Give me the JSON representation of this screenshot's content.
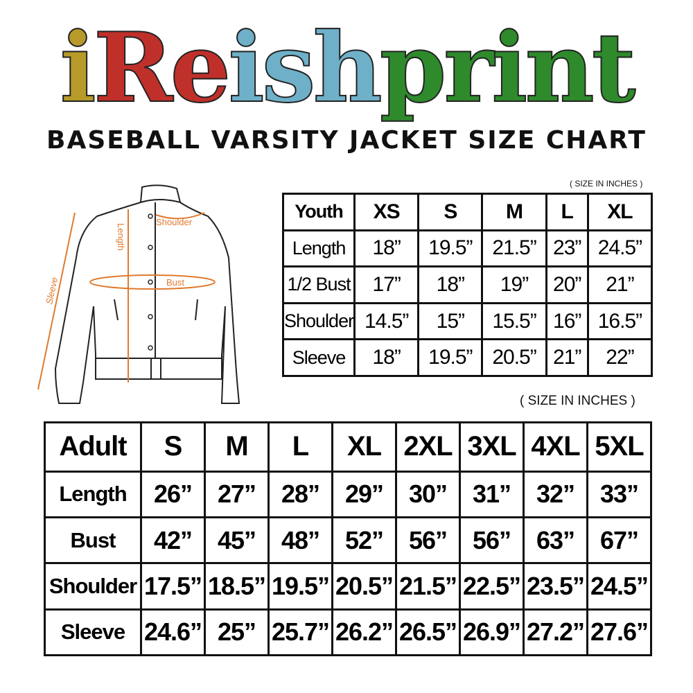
{
  "logo": {
    "text": "iReishprint",
    "letters": [
      "i",
      "R",
      "e",
      "i",
      "s",
      "h",
      "p",
      "r",
      "i",
      "n",
      "t"
    ],
    "colors": [
      "#b79a2a",
      "#c0302a",
      "#c0302a",
      "#6fb0c9",
      "#6fb0c9",
      "#6fb0c9",
      "#2f8a2c",
      "#2f8a2c",
      "#2f8a2c",
      "#2f8a2c",
      "#2f8a2c"
    ]
  },
  "title": "BASEBALL VARSITY JACKET SIZE CHART",
  "diagram": {
    "labels": {
      "shoulder": "Shoulder",
      "length": "Length",
      "bust": "Bust",
      "sleeve": "Sleeve"
    },
    "accent": "#e07a2e"
  },
  "youth": {
    "unit_note": "( SIZE IN INCHES )",
    "header": [
      "Youth",
      "XS",
      "S",
      "M",
      "L",
      "XL"
    ],
    "rows": [
      [
        "Length",
        "18”",
        "19.5”",
        "21.5”",
        "23”",
        "24.5”"
      ],
      [
        "1/2 Bust",
        "17”",
        "18”",
        "19”",
        "20”",
        "21”"
      ],
      [
        "Shoulder",
        "14.5”",
        "15”",
        "15.5”",
        "16”",
        "16.5”"
      ],
      [
        "Sleeve",
        "18”",
        "19.5”",
        "20.5”",
        "21”",
        "22”"
      ]
    ]
  },
  "adult": {
    "unit_note": "( SIZE IN INCHES )",
    "header": [
      "Adult",
      "S",
      "M",
      "L",
      "XL",
      "2XL",
      "3XL",
      "4XL",
      "5XL"
    ],
    "rows": [
      [
        "Length",
        "26”",
        "27”",
        "28”",
        "29”",
        "30”",
        "31”",
        "32”",
        "33”"
      ],
      [
        "Bust",
        "42”",
        "45”",
        "48”",
        "52”",
        "56”",
        "56”",
        "63”",
        "67”"
      ],
      [
        "Shoulder",
        "17.5”",
        "18.5”",
        "19.5”",
        "20.5”",
        "21.5”",
        "22.5”",
        "23.5”",
        "24.5”"
      ],
      [
        "Sleeve",
        "24.6”",
        "25”",
        "25.7”",
        "26.2”",
        "26.5”",
        "26.9”",
        "27.2”",
        "27.6”"
      ]
    ]
  }
}
